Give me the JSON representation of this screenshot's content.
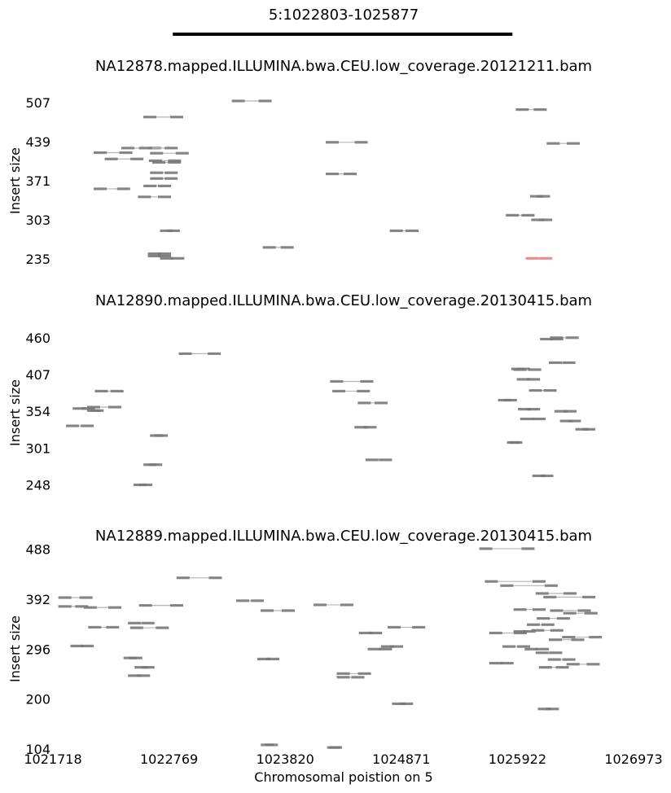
{
  "region": {
    "title": "5:1022803-1025877",
    "start": 1022803,
    "end": 1025877
  },
  "x_axis": {
    "label": "Chromosomal poistion on 5",
    "ticks": [
      "1021718",
      "1022769",
      "1023820",
      "1024871",
      "1025922",
      "1026973"
    ],
    "tick_values": [
      1021718,
      1022769,
      1023820,
      1024871,
      1025922,
      1026973
    ],
    "range": [
      1021718,
      1026973
    ]
  },
  "colors": {
    "pair": "#777777",
    "pair_line": "#b5b5b5",
    "flagged": "#f08080"
  },
  "chart_data": [
    {
      "type": "scatter",
      "title": "NA12878.mapped.ILLUMINA.bwa.CEU.low_coverage.20121211.bam",
      "ylabel": "Insert size",
      "yticks": [
        "507",
        "439",
        "371",
        "303",
        "235"
      ],
      "ylim": [
        218,
        527
      ],
      "pairs": [
        {
          "x1": 1023337,
          "x2": 1023697,
          "y": 510
        },
        {
          "x1": 1022537,
          "x2": 1022897,
          "y": 482
        },
        {
          "x1": 1022337,
          "x2": 1022697,
          "y": 428
        },
        {
          "x1": 1022087,
          "x2": 1022437,
          "y": 420
        },
        {
          "x1": 1022497,
          "x2": 1022847,
          "y": 428
        },
        {
          "x1": 1022597,
          "x2": 1022947,
          "y": 419
        },
        {
          "x1": 1022187,
          "x2": 1022537,
          "y": 409
        },
        {
          "x1": 1022587,
          "x2": 1022877,
          "y": 406
        },
        {
          "x1": 1022617,
          "x2": 1022877,
          "y": 403
        },
        {
          "x1": 1022597,
          "x2": 1022847,
          "y": 385
        },
        {
          "x1": 1022597,
          "x2": 1022847,
          "y": 375
        },
        {
          "x1": 1022537,
          "x2": 1022787,
          "y": 362
        },
        {
          "x1": 1022087,
          "x2": 1022417,
          "y": 357
        },
        {
          "x1": 1022487,
          "x2": 1022787,
          "y": 343
        },
        {
          "x1": 1022687,
          "x2": 1022867,
          "y": 284
        },
        {
          "x1": 1022577,
          "x2": 1022787,
          "y": 244
        },
        {
          "x1": 1022577,
          "x2": 1022787,
          "y": 240
        },
        {
          "x1": 1022687,
          "x2": 1022907,
          "y": 236
        },
        {
          "x1": 1023617,
          "x2": 1023897,
          "y": 255
        },
        {
          "x1": 1024187,
          "x2": 1024567,
          "y": 438
        },
        {
          "x1": 1024187,
          "x2": 1024467,
          "y": 383
        },
        {
          "x1": 1024767,
          "x2": 1025027,
          "y": 284
        },
        {
          "x1": 1025817,
          "x2": 1026077,
          "y": 311
        },
        {
          "x1": 1025907,
          "x2": 1026187,
          "y": 495
        },
        {
          "x1": 1026037,
          "x2": 1026217,
          "y": 344
        },
        {
          "x1": 1026047,
          "x2": 1026237,
          "y": 303
        },
        {
          "x1": 1026187,
          "x2": 1026487,
          "y": 436
        },
        {
          "x1": 1025997,
          "x2": 1026237,
          "y": 236,
          "flag": true
        }
      ]
    },
    {
      "type": "scatter",
      "title": "NA12890.mapped.ILLUMINA.bwa.CEU.low_coverage.20130415.bam",
      "ylabel": "Insert size",
      "yticks": [
        "460",
        "407",
        "354",
        "301",
        "248"
      ],
      "ylim": [
        231,
        475
      ],
      "pairs": [
        {
          "x1": 1022097,
          "x2": 1022357,
          "y": 383
        },
        {
          "x1": 1021897,
          "x2": 1022097,
          "y": 358
        },
        {
          "x1": 1022027,
          "x2": 1022337,
          "y": 360
        },
        {
          "x1": 1022027,
          "x2": 1022177,
          "y": 355
        },
        {
          "x1": 1021837,
          "x2": 1022087,
          "y": 333
        },
        {
          "x1": 1022597,
          "x2": 1022757,
          "y": 319
        },
        {
          "x1": 1022857,
          "x2": 1023237,
          "y": 437
        },
        {
          "x1": 1022537,
          "x2": 1022707,
          "y": 277
        },
        {
          "x1": 1022447,
          "x2": 1022617,
          "y": 248
        },
        {
          "x1": 1024227,
          "x2": 1024617,
          "y": 397
        },
        {
          "x1": 1024247,
          "x2": 1024587,
          "y": 383
        },
        {
          "x1": 1024477,
          "x2": 1024747,
          "y": 366
        },
        {
          "x1": 1024447,
          "x2": 1024647,
          "y": 331
        },
        {
          "x1": 1024547,
          "x2": 1024787,
          "y": 284
        },
        {
          "x1": 1025747,
          "x2": 1025917,
          "y": 370
        },
        {
          "x1": 1025867,
          "x2": 1026037,
          "y": 415
        },
        {
          "x1": 1025917,
          "x2": 1026127,
          "y": 400
        },
        {
          "x1": 1026027,
          "x2": 1026277,
          "y": 384
        },
        {
          "x1": 1025927,
          "x2": 1026127,
          "y": 357
        },
        {
          "x1": 1025947,
          "x2": 1026177,
          "y": 343
        },
        {
          "x1": 1025887,
          "x2": 1026137,
          "y": 414
        },
        {
          "x1": 1026127,
          "x2": 1026337,
          "y": 458
        },
        {
          "x1": 1026207,
          "x2": 1026447,
          "y": 424
        },
        {
          "x1": 1026257,
          "x2": 1026457,
          "y": 354
        },
        {
          "x1": 1026307,
          "x2": 1026497,
          "y": 340
        },
        {
          "x1": 1026447,
          "x2": 1026627,
          "y": 328
        },
        {
          "x1": 1025827,
          "x2": 1025967,
          "y": 309
        },
        {
          "x1": 1026057,
          "x2": 1026247,
          "y": 261
        },
        {
          "x1": 1026217,
          "x2": 1026477,
          "y": 460
        }
      ]
    },
    {
      "type": "scatter",
      "title": "NA12889.mapped.ILLUMINA.bwa.CEU.low_coverage.20130415.bam",
      "ylabel": "Insert size",
      "yticks": [
        "488",
        "392",
        "296",
        "200",
        "104"
      ],
      "ylim": [
        104,
        492
      ],
      "pairs": [
        {
          "x1": 1021767,
          "x2": 1022077,
          "y": 395
        },
        {
          "x1": 1021767,
          "x2": 1022037,
          "y": 378
        },
        {
          "x1": 1021997,
          "x2": 1022337,
          "y": 376
        },
        {
          "x1": 1022497,
          "x2": 1022897,
          "y": 380
        },
        {
          "x1": 1022837,
          "x2": 1023247,
          "y": 433
        },
        {
          "x1": 1022397,
          "x2": 1022637,
          "y": 346
        },
        {
          "x1": 1022037,
          "x2": 1022317,
          "y": 338
        },
        {
          "x1": 1022417,
          "x2": 1022767,
          "y": 337
        },
        {
          "x1": 1021877,
          "x2": 1022087,
          "y": 302
        },
        {
          "x1": 1022357,
          "x2": 1022527,
          "y": 279
        },
        {
          "x1": 1022457,
          "x2": 1022637,
          "y": 261
        },
        {
          "x1": 1022397,
          "x2": 1022597,
          "y": 245
        },
        {
          "x1": 1023377,
          "x2": 1023627,
          "y": 389
        },
        {
          "x1": 1023597,
          "x2": 1023907,
          "y": 370
        },
        {
          "x1": 1023567,
          "x2": 1023767,
          "y": 277
        },
        {
          "x1": 1023637,
          "x2": 1023717,
          "y": 112
        },
        {
          "x1": 1024077,
          "x2": 1024437,
          "y": 381
        },
        {
          "x1": 1024287,
          "x2": 1024597,
          "y": 249
        },
        {
          "x1": 1024287,
          "x2": 1024537,
          "y": 242
        },
        {
          "x1": 1024487,
          "x2": 1024697,
          "y": 327
        },
        {
          "x1": 1024567,
          "x2": 1024787,
          "y": 296
        },
        {
          "x1": 1024687,
          "x2": 1024887,
          "y": 301
        },
        {
          "x1": 1024747,
          "x2": 1025087,
          "y": 338
        },
        {
          "x1": 1024787,
          "x2": 1024977,
          "y": 191
        },
        {
          "x1": 1024217,
          "x2": 1024317,
          "y": 107
        },
        {
          "x1": 1025577,
          "x2": 1026077,
          "y": 489
        },
        {
          "x1": 1025627,
          "x2": 1026177,
          "y": 426
        },
        {
          "x1": 1025767,
          "x2": 1026287,
          "y": 418
        },
        {
          "x1": 1026087,
          "x2": 1026457,
          "y": 403
        },
        {
          "x1": 1026157,
          "x2": 1026627,
          "y": 396
        },
        {
          "x1": 1025887,
          "x2": 1026177,
          "y": 372
        },
        {
          "x1": 1026097,
          "x2": 1026397,
          "y": 355
        },
        {
          "x1": 1026217,
          "x2": 1026587,
          "y": 370
        },
        {
          "x1": 1026337,
          "x2": 1026647,
          "y": 365
        },
        {
          "x1": 1025667,
          "x2": 1026007,
          "y": 327
        },
        {
          "x1": 1025787,
          "x2": 1026037,
          "y": 301
        },
        {
          "x1": 1025987,
          "x2": 1026207,
          "y": 296
        },
        {
          "x1": 1026087,
          "x2": 1026327,
          "y": 289
        },
        {
          "x1": 1026197,
          "x2": 1026447,
          "y": 276
        },
        {
          "x1": 1025667,
          "x2": 1025887,
          "y": 269
        },
        {
          "x1": 1026117,
          "x2": 1026387,
          "y": 261
        },
        {
          "x1": 1026367,
          "x2": 1026667,
          "y": 267
        },
        {
          "x1": 1026207,
          "x2": 1026527,
          "y": 314
        },
        {
          "x1": 1026327,
          "x2": 1026687,
          "y": 319
        },
        {
          "x1": 1026007,
          "x2": 1026257,
          "y": 343
        },
        {
          "x1": 1026047,
          "x2": 1026337,
          "y": 332
        },
        {
          "x1": 1025887,
          "x2": 1026087,
          "y": 330
        },
        {
          "x1": 1026107,
          "x2": 1026297,
          "y": 181
        }
      ]
    }
  ]
}
